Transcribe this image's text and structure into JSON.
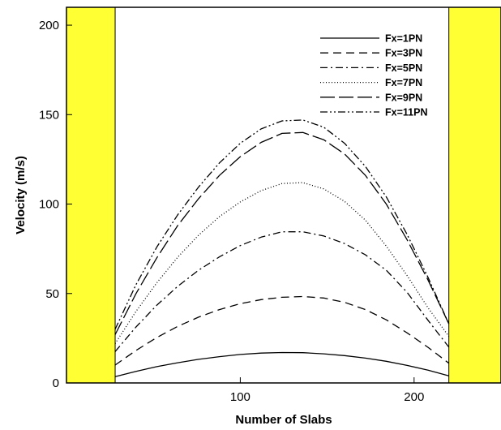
{
  "chart_data": {
    "type": "line",
    "title": "",
    "xlabel": "Number of Slabs",
    "ylabel": "Velocity (m/s)",
    "xlim": [
      0,
      250
    ],
    "ylim": [
      0,
      210
    ],
    "xticks": [
      100,
      200
    ],
    "yticks": [
      0,
      50,
      100,
      150,
      200
    ],
    "grid": false,
    "legend_position": "top-right",
    "walls": [
      {
        "x_range": [
          0,
          28
        ],
        "color": "#ffff33"
      },
      {
        "x_range": [
          220,
          250
        ],
        "color": "#ffff33"
      }
    ],
    "x": [
      28,
      40,
      52,
      64,
      76,
      88,
      100,
      112,
      124,
      136,
      148,
      160,
      172,
      184,
      196,
      208,
      220
    ],
    "series": [
      {
        "name": "Fx=1PN",
        "dash": "solid",
        "values": [
          3.5,
          6.5,
          9.1,
          11.3,
          13.2,
          14.7,
          15.9,
          16.7,
          17.0,
          16.9,
          16.3,
          15.3,
          13.9,
          12.1,
          9.8,
          7.1,
          4.0
        ]
      },
      {
        "name": "Fx=3PN",
        "dash": "dashed",
        "values": [
          10.0,
          18.2,
          25.4,
          31.6,
          36.8,
          41.0,
          44.3,
          46.6,
          47.9,
          48.3,
          47.5,
          45.1,
          41.0,
          35.3,
          28.0,
          19.9,
          11.0
        ]
      },
      {
        "name": "Fx=5PN",
        "dash": "dashdot",
        "values": [
          17.5,
          31.3,
          43.5,
          54.0,
          63.0,
          70.5,
          76.8,
          81.5,
          84.5,
          84.5,
          82.2,
          77.9,
          71.6,
          63.0,
          50.6,
          35.0,
          20.0
        ]
      },
      {
        "name": "Fx=7PN",
        "dash": "dotted",
        "values": [
          22.0,
          40.0,
          56.0,
          70.3,
          82.6,
          93.0,
          101.2,
          107.5,
          111.5,
          112.0,
          108.5,
          101.5,
          91.0,
          76.5,
          60.0,
          42.0,
          26.0
        ]
      },
      {
        "name": "Fx=9PN",
        "dash": "longdash",
        "values": [
          27.0,
          50.0,
          70.0,
          88.0,
          103.0,
          116.0,
          126.5,
          134.5,
          139.5,
          140.0,
          136.0,
          128.0,
          116.0,
          100.0,
          80.0,
          57.5,
          33.0
        ]
      },
      {
        "name": "Fx=11PN",
        "dash": "dashdotdot",
        "values": [
          30.0,
          55.0,
          76.0,
          94.0,
          109.5,
          123.0,
          134.0,
          142.0,
          146.5,
          147.0,
          143.0,
          134.0,
          121.0,
          104.0,
          83.0,
          59.0,
          33.0
        ]
      }
    ]
  }
}
